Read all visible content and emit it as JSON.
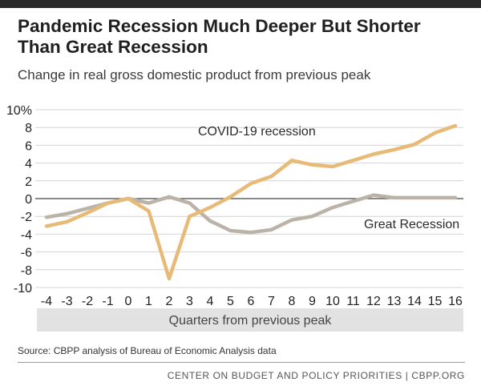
{
  "header": {
    "title": "Pandemic Recession Much Deeper But Shorter Than Great Recession",
    "subtitle": "Change in real gross domestic product from previous peak"
  },
  "source": "Source: CBPP analysis of Bureau of Economic Analysis data",
  "footer": "CENTER ON BUDGET AND POLICY PRIORITIES | CBPP.ORG",
  "chart_data": {
    "type": "line",
    "title": "Pandemic Recession Much Deeper But Shorter Than Great Recession",
    "subtitle": "Change in real gross domestic product from previous peak",
    "xlabel": "Quarters from previous peak",
    "ylabel": "",
    "x": [
      -4,
      -3,
      -2,
      -1,
      0,
      1,
      2,
      3,
      4,
      5,
      6,
      7,
      8,
      9,
      10,
      11,
      12,
      13,
      14,
      15,
      16
    ],
    "xlim": [
      -4,
      16
    ],
    "ylim": [
      -10,
      10
    ],
    "y_ticks": [
      10,
      8,
      6,
      4,
      2,
      0,
      -2,
      -4,
      -6,
      -8,
      -10
    ],
    "y_tick_labels": [
      "10%",
      "8",
      "6",
      "4",
      "2",
      "0",
      "-2",
      "-4",
      "-6",
      "-8",
      "-10"
    ],
    "x_tick_labels": [
      "-4",
      "-3",
      "-2",
      "-1",
      "0",
      "1",
      "2",
      "3",
      "4",
      "5",
      "6",
      "7",
      "8",
      "9",
      "10",
      "11",
      "12",
      "13",
      "14",
      "15",
      "16"
    ],
    "grid": "horizontal",
    "series": [
      {
        "name": "COVID-19 recession",
        "color": "#E8BA78",
        "values": [
          -3.1,
          -2.6,
          -1.6,
          -0.5,
          0.0,
          -1.4,
          -9.0,
          -2.0,
          -1.0,
          0.2,
          1.7,
          2.5,
          4.3,
          3.8,
          3.6,
          4.3,
          5.0,
          5.5,
          6.1,
          7.4,
          8.2
        ]
      },
      {
        "name": "Great Recession",
        "color": "#BBB3A8",
        "values": [
          -2.1,
          -1.7,
          -1.1,
          -0.5,
          0.0,
          -0.5,
          0.2,
          -0.5,
          -2.5,
          -3.6,
          -3.8,
          -3.5,
          -2.4,
          -2.0,
          -1.0,
          -0.3,
          0.4,
          0.1,
          0.1,
          0.1,
          0.1
        ]
      }
    ]
  }
}
